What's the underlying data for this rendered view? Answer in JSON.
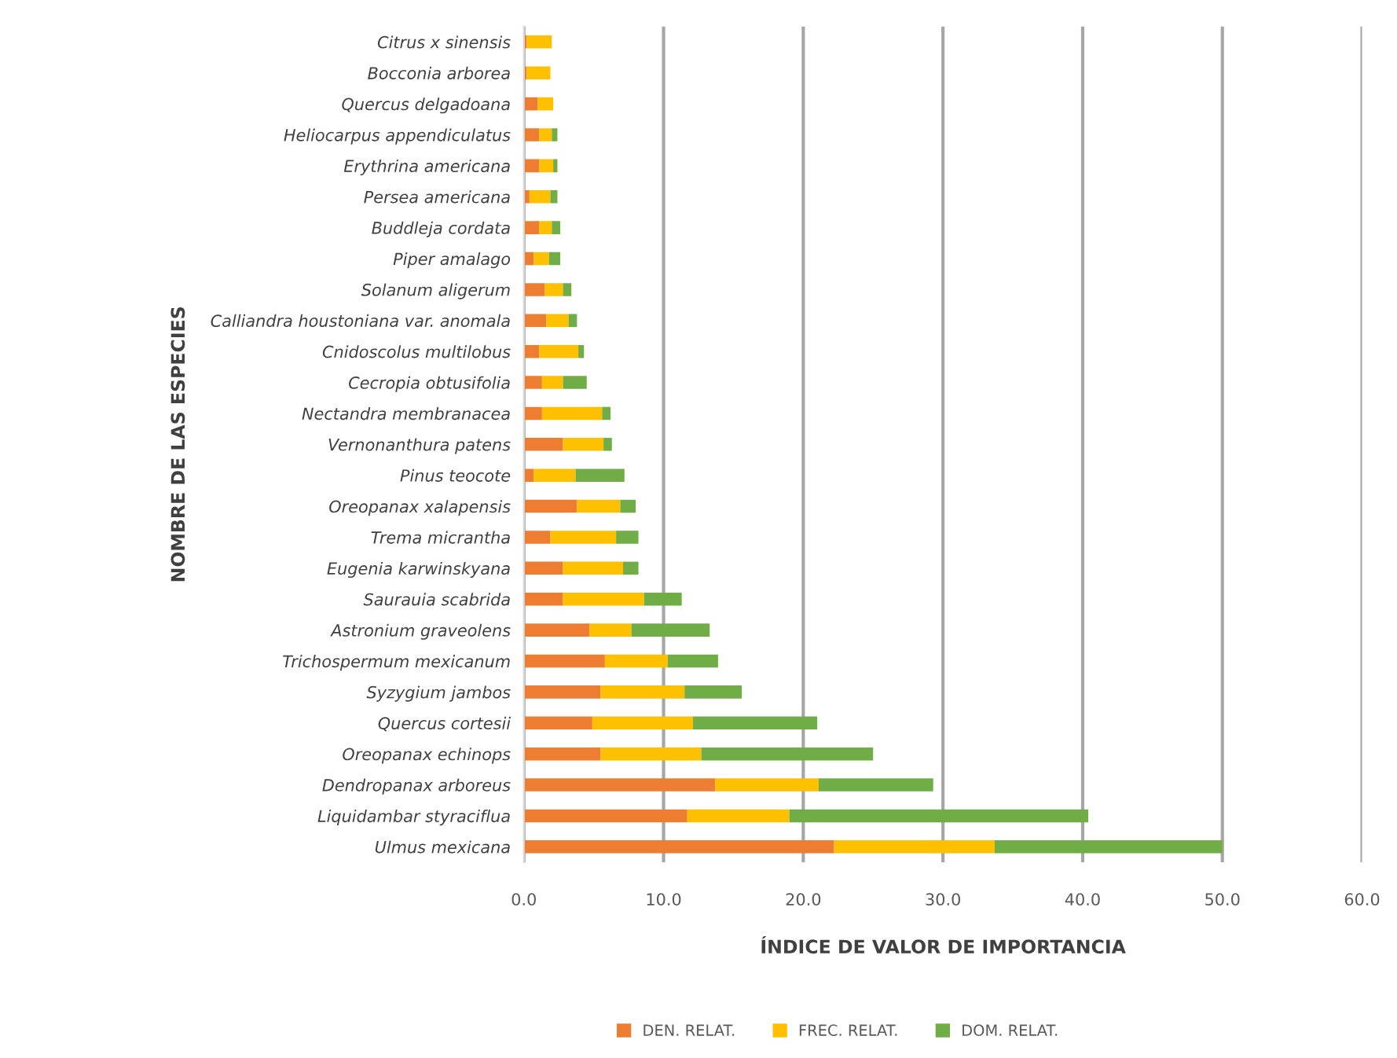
{
  "chart_data": {
    "type": "bar",
    "orientation": "horizontal",
    "stacked": true,
    "xlabel": "ÍNDICE DE VALOR DE IMPORTANCIA",
    "ylabel": "NOMBRE DE LAS ESPECIES",
    "categories": [
      "Citrus x sinensis",
      "Bocconia arborea",
      "Quercus delgadoana",
      "Heliocarpus appendiculatus",
      "Erythrina americana",
      "Persea americana",
      "Buddleja cordata",
      "Piper amalago",
      "Solanum aligerum",
      "Calliandra houstoniana var. anomala",
      "Cnidoscolus multilobus",
      "Cecropia obtusifolia",
      "Nectandra membranacea",
      "Vernonanthura patens",
      "Pinus teocote",
      "Oreopanax xalapensis",
      "Trema micrantha",
      "Eugenia karwinskyana",
      "Saurauia scabrida",
      "Astronium graveolens",
      "Trichospermum mexicanum",
      "Syzygium jambos",
      "Quercus cortesii",
      "Oreopanax echinops",
      "Dendropanax arboreus",
      "Liquidambar styraciflua",
      "Ulmus mexicana"
    ],
    "series": [
      {
        "name": "DEN. RELAT.",
        "color": "#ed7d31",
        "values": [
          0.2,
          0.2,
          1.0,
          1.1,
          1.1,
          0.4,
          1.1,
          0.7,
          1.5,
          1.6,
          1.1,
          1.3,
          1.3,
          2.8,
          0.7,
          3.8,
          1.9,
          2.8,
          2.8,
          4.7,
          5.8,
          5.5,
          4.9,
          5.5,
          13.7,
          11.7,
          22.2
        ]
      },
      {
        "name": "FREC. RELAT.",
        "color": "#ffc000",
        "values": [
          1.8,
          1.7,
          1.1,
          0.9,
          1.0,
          1.5,
          0.9,
          1.1,
          1.3,
          1.6,
          2.8,
          1.5,
          4.3,
          2.9,
          3.0,
          3.1,
          4.7,
          4.3,
          5.8,
          3.0,
          4.5,
          6.0,
          7.2,
          7.2,
          7.4,
          7.3,
          11.5
        ]
      },
      {
        "name": "DOM. RELAT.",
        "color": "#70ad47",
        "values": [
          0,
          0,
          0,
          0.4,
          0.3,
          0.5,
          0.6,
          0.8,
          0.6,
          0.6,
          0.4,
          1.7,
          0.6,
          0.6,
          3.5,
          1.1,
          1.6,
          1.1,
          2.7,
          5.6,
          3.6,
          4.1,
          8.9,
          12.3,
          8.2,
          21.4,
          16.3
        ]
      }
    ],
    "xlim": [
      0,
      60
    ],
    "xticks": [
      {
        "value": 0,
        "label": "0.0"
      },
      {
        "value": 10,
        "label": "10.0"
      },
      {
        "value": 20,
        "label": "20.0"
      },
      {
        "value": 30,
        "label": "30.0"
      },
      {
        "value": 40,
        "label": "40.0"
      },
      {
        "value": 50,
        "label": "50.0"
      },
      {
        "value": 60,
        "label": "60.0"
      }
    ],
    "grid": "x",
    "legend": "bottom"
  }
}
